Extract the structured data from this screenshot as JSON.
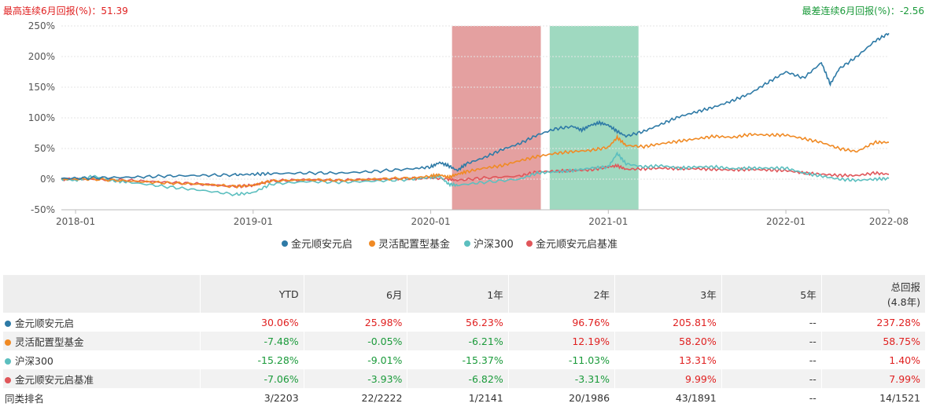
{
  "header": {
    "best_label": "最高连续6月回报(%)",
    "best_value": "51.39",
    "worst_label": "最差连续6月回报(%)",
    "worst_value": "-2.56"
  },
  "colors": {
    "fund": "#2e7aa6",
    "category": "#f08a24",
    "index": "#5cbfbf",
    "benchmark": "#e0565a",
    "best_band": "#e4a0a0",
    "worst_band": "#9fd9c0"
  },
  "chart_data": {
    "type": "line",
    "ylim": [
      -50,
      250
    ],
    "yticks": [
      "250%",
      "200%",
      "150%",
      "100%",
      "50%",
      "0%",
      "-50%"
    ],
    "ytick_values": [
      250,
      200,
      150,
      100,
      50,
      0,
      -50
    ],
    "xticks": [
      "2018-01",
      "2019-01",
      "2020-01",
      "2021-01",
      "2022-01",
      "2022-08"
    ],
    "xtick_values": [
      2018.0,
      2019.0,
      2020.0,
      2021.0,
      2022.0,
      2022.58
    ],
    "xlim": [
      2017.92,
      2022.58
    ],
    "grid": true,
    "legend_position": "bottom",
    "bands": [
      {
        "name": "best",
        "from": 2020.12,
        "to": 2020.62
      },
      {
        "name": "worst",
        "from": 2020.67,
        "to": 2021.17
      }
    ],
    "series": [
      {
        "name": "金元顺安元启",
        "color_key": "fund",
        "x": [
          2017.92,
          2018.1,
          2018.3,
          2018.5,
          2018.7,
          2018.9,
          2019.0,
          2019.1,
          2019.3,
          2019.5,
          2019.7,
          2019.9,
          2020.0,
          2020.05,
          2020.1,
          2020.15,
          2020.2,
          2020.3,
          2020.4,
          2020.5,
          2020.6,
          2020.7,
          2020.8,
          2020.85,
          2020.9,
          2020.95,
          2021.0,
          2021.05,
          2021.1,
          2021.2,
          2021.3,
          2021.4,
          2021.5,
          2021.6,
          2021.7,
          2021.8,
          2021.9,
          2022.0,
          2022.1,
          2022.2,
          2022.25,
          2022.3,
          2022.4,
          2022.5,
          2022.58
        ],
        "y": [
          1,
          2,
          3,
          5,
          6,
          7,
          8,
          9,
          10,
          10,
          13,
          17,
          20,
          27,
          22,
          14,
          25,
          35,
          48,
          58,
          72,
          82,
          86,
          80,
          88,
          92,
          88,
          78,
          70,
          78,
          90,
          102,
          110,
          118,
          128,
          140,
          158,
          175,
          165,
          190,
          155,
          180,
          200,
          225,
          238
        ]
      },
      {
        "name": "灵活配置型基金",
        "color_key": "category",
        "x": [
          2017.92,
          2018.1,
          2018.3,
          2018.5,
          2018.7,
          2018.9,
          2019.0,
          2019.1,
          2019.3,
          2019.5,
          2019.7,
          2019.9,
          2020.0,
          2020.05,
          2020.1,
          2020.15,
          2020.2,
          2020.3,
          2020.4,
          2020.5,
          2020.6,
          2020.7,
          2020.8,
          2020.9,
          2021.0,
          2021.05,
          2021.1,
          2021.2,
          2021.3,
          2021.4,
          2021.5,
          2021.6,
          2021.7,
          2021.8,
          2021.9,
          2022.0,
          2022.1,
          2022.2,
          2022.3,
          2022.4,
          2022.5,
          2022.58
        ],
        "y": [
          0,
          0,
          -3,
          -6,
          -8,
          -12,
          -10,
          -3,
          -1,
          -2,
          0,
          2,
          5,
          7,
          3,
          8,
          12,
          18,
          22,
          30,
          37,
          42,
          45,
          47,
          52,
          68,
          55,
          53,
          58,
          62,
          66,
          70,
          68,
          73,
          72,
          72,
          66,
          60,
          50,
          45,
          60,
          60
        ]
      },
      {
        "name": "沪深300",
        "color_key": "index",
        "x": [
          2017.92,
          2018.0,
          2018.1,
          2018.2,
          2018.3,
          2018.5,
          2018.7,
          2018.9,
          2019.0,
          2019.1,
          2019.3,
          2019.5,
          2019.7,
          2019.9,
          2020.0,
          2020.05,
          2020.1,
          2020.15,
          2020.3,
          2020.5,
          2020.6,
          2020.7,
          2020.8,
          2020.9,
          2021.0,
          2021.05,
          2021.1,
          2021.2,
          2021.3,
          2021.4,
          2021.5,
          2021.6,
          2021.7,
          2021.8,
          2021.9,
          2022.0,
          2022.1,
          2022.2,
          2022.3,
          2022.4,
          2022.5,
          2022.58
        ],
        "y": [
          0,
          -2,
          5,
          -2,
          -5,
          -12,
          -18,
          -25,
          -22,
          -8,
          -4,
          -5,
          -3,
          0,
          3,
          5,
          -8,
          -10,
          -5,
          0,
          10,
          12,
          14,
          18,
          20,
          42,
          25,
          20,
          22,
          18,
          20,
          20,
          17,
          18,
          18,
          18,
          10,
          5,
          0,
          -2,
          0,
          1
        ]
      },
      {
        "name": "金元顺安元启基准",
        "color_key": "benchmark",
        "x": [
          2017.92,
          2018.1,
          2018.3,
          2018.5,
          2018.7,
          2018.9,
          2019.0,
          2019.1,
          2019.3,
          2019.5,
          2019.7,
          2019.9,
          2020.0,
          2020.1,
          2020.15,
          2020.3,
          2020.5,
          2020.6,
          2020.7,
          2020.8,
          2020.9,
          2021.0,
          2021.05,
          2021.1,
          2021.2,
          2021.3,
          2021.4,
          2021.5,
          2021.6,
          2021.7,
          2021.8,
          2021.9,
          2022.0,
          2022.1,
          2022.2,
          2022.3,
          2022.4,
          2022.5,
          2022.58
        ],
        "y": [
          0,
          0,
          -2,
          -5,
          -8,
          -12,
          -10,
          -3,
          -1,
          -2,
          0,
          1,
          2,
          0,
          -2,
          2,
          5,
          12,
          13,
          14,
          15,
          20,
          22,
          16,
          17,
          18,
          17,
          17,
          16,
          15,
          16,
          15,
          14,
          10,
          8,
          6,
          6,
          10,
          8
        ]
      }
    ]
  },
  "table": {
    "headers": [
      "",
      "YTD",
      "6月",
      "1年",
      "2年",
      "3年",
      "5年",
      "总回报",
      "(4.8年)"
    ],
    "rows": [
      {
        "name": "金元顺安元启",
        "color_key": "fund",
        "cells": [
          [
            "30.06%",
            "pos"
          ],
          [
            "25.98%",
            "pos"
          ],
          [
            "56.23%",
            "pos"
          ],
          [
            "96.76%",
            "pos"
          ],
          [
            "205.81%",
            "pos"
          ],
          [
            "--",
            "neu"
          ],
          [
            "237.28%",
            "pos"
          ]
        ]
      },
      {
        "name": "灵活配置型基金",
        "color_key": "category",
        "cells": [
          [
            "-7.48%",
            "neg"
          ],
          [
            "-0.05%",
            "neg"
          ],
          [
            "-6.21%",
            "neg"
          ],
          [
            "12.19%",
            "pos"
          ],
          [
            "58.20%",
            "pos"
          ],
          [
            "--",
            "neu"
          ],
          [
            "58.75%",
            "pos"
          ]
        ]
      },
      {
        "name": "沪深300",
        "color_key": "index",
        "cells": [
          [
            "-15.28%",
            "neg"
          ],
          [
            "-9.01%",
            "neg"
          ],
          [
            "-15.37%",
            "neg"
          ],
          [
            "-11.03%",
            "neg"
          ],
          [
            "13.31%",
            "pos"
          ],
          [
            "--",
            "neu"
          ],
          [
            "1.40%",
            "pos"
          ]
        ]
      },
      {
        "name": "金元顺安元启基准",
        "color_key": "benchmark",
        "cells": [
          [
            "-7.06%",
            "neg"
          ],
          [
            "-3.93%",
            "neg"
          ],
          [
            "-6.82%",
            "neg"
          ],
          [
            "-3.31%",
            "neg"
          ],
          [
            "9.99%",
            "pos"
          ],
          [
            "--",
            "neu"
          ],
          [
            "7.99%",
            "pos"
          ]
        ]
      },
      {
        "name": "同类排名",
        "color_key": null,
        "cells": [
          [
            "3/2203",
            "neu"
          ],
          [
            "22/2222",
            "neu"
          ],
          [
            "1/2141",
            "neu"
          ],
          [
            "20/1986",
            "neu"
          ],
          [
            "43/1891",
            "neu"
          ],
          [
            "--",
            "neu"
          ],
          [
            "14/1521",
            "neu"
          ]
        ]
      }
    ]
  }
}
